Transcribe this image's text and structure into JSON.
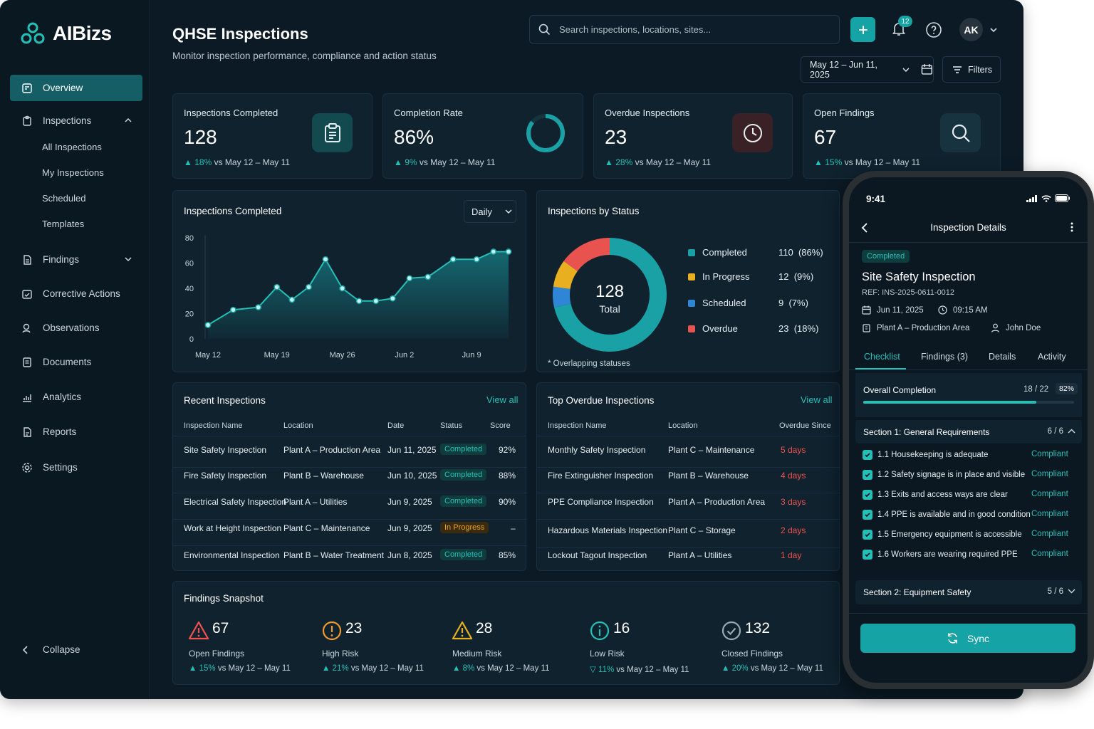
{
  "brand": {
    "name": "AIBizs"
  },
  "sidebar": {
    "items": [
      {
        "label": "Overview",
        "icon": "overview-icon"
      },
      {
        "label": "Inspections",
        "icon": "clipboard-icon"
      },
      {
        "label": "Findings",
        "icon": "document-icon"
      },
      {
        "label": "Corrective Actions",
        "icon": "actions-icon"
      },
      {
        "label": "Observations",
        "icon": "observation-icon"
      },
      {
        "label": "Documents",
        "icon": "files-icon"
      },
      {
        "label": "Analytics",
        "icon": "analytics-icon"
      },
      {
        "label": "Reports",
        "icon": "report-icon"
      },
      {
        "label": "Settings",
        "icon": "gear-icon"
      }
    ],
    "sub_items": [
      "All Inspections",
      "My Inspections",
      "Scheduled",
      "Templates"
    ],
    "collapse_label": "Collapse"
  },
  "header": {
    "title": "QHSE Inspections",
    "subtitle": "Monitor inspection performance, compliance and action status",
    "search_placeholder": "Search inspections, locations, sites...",
    "notifications_count": "12",
    "avatar_initials": "AK",
    "date_range": "May 12 – Jun 11, 2025",
    "filters_label": "Filters"
  },
  "kpis": [
    {
      "label": "Inspections Completed",
      "value": "128",
      "delta": "18%",
      "compare": "vs May 12 – May 11",
      "icon": "clipboard-icon"
    },
    {
      "label": "Completion Rate",
      "value": "86%",
      "delta": "9%",
      "compare": "vs May 12 – May 11",
      "icon": "progress-ring-icon",
      "fraction": 0.86
    },
    {
      "label": "Overdue Inspections",
      "value": "23",
      "delta": "28%",
      "compare": "vs May 12 – May 11",
      "icon": "clock-icon"
    },
    {
      "label": "Open Findings",
      "value": "67",
      "delta": "15%",
      "compare": "vs May 12 – May 11",
      "icon": "search-icon"
    }
  ],
  "line_chart": {
    "title": "Inspections Completed",
    "period": "Daily"
  },
  "chart_data": [
    {
      "type": "area",
      "title": "Inspections Completed",
      "x_ticks": [
        "May 12",
        "May 19",
        "May 26",
        "Jun 2",
        "Jun 9"
      ],
      "y_ticks": [
        0,
        20,
        40,
        60,
        80
      ],
      "ylim": [
        0,
        80
      ],
      "x": [
        0,
        1.5,
        3,
        4.1,
        5,
        6,
        7,
        8,
        9,
        10,
        11,
        12,
        13.1,
        14.6,
        16,
        17,
        17.9
      ],
      "values": [
        11,
        23,
        25,
        41,
        31,
        41,
        63,
        40,
        30,
        30,
        32,
        48,
        49,
        63,
        63,
        69,
        69
      ],
      "grid": false
    },
    {
      "type": "pie",
      "title": "Inspections by Status",
      "center_value": "128",
      "center_label": "Total",
      "slices": [
        {
          "label": "Completed",
          "value": 110,
          "pct": "86%",
          "color": "#1aa1a6"
        },
        {
          "label": "In Progress",
          "value": 12,
          "pct": "9%",
          "color": "#e8b021"
        },
        {
          "label": "Scheduled",
          "value": 9,
          "pct": "7%",
          "color": "#2f86d6"
        },
        {
          "label": "Overdue",
          "value": 23,
          "pct": "18%",
          "color": "#e85350"
        }
      ],
      "footnote": "* Overlapping statuses"
    }
  ],
  "recent": {
    "title": "Recent Inspections",
    "view_all": "View all",
    "columns": [
      "Inspection Name",
      "Location",
      "Date",
      "Status",
      "Score"
    ],
    "rows": [
      {
        "name": "Site Safety Inspection",
        "location": "Plant A – Production Area",
        "date": "Jun 11, 2025",
        "status": "Completed",
        "score": "92%"
      },
      {
        "name": "Fire Safety Inspection",
        "location": "Plant B – Warehouse",
        "date": "Jun 10, 2025",
        "status": "Completed",
        "score": "88%"
      },
      {
        "name": "Electrical Safety Inspection",
        "location": "Plant A – Utilities",
        "date": "Jun 9, 2025",
        "status": "Completed",
        "score": "90%"
      },
      {
        "name": "Work at Height Inspection",
        "location": "Plant C – Maintenance",
        "date": "Jun 9, 2025",
        "status": "In Progress",
        "score": "–"
      },
      {
        "name": "Environmental Inspection",
        "location": "Plant B – Water Treatment",
        "date": "Jun 8, 2025",
        "status": "Completed",
        "score": "85%"
      }
    ]
  },
  "overdue": {
    "title": "Top Overdue Inspections",
    "view_all": "View all",
    "columns": [
      "Inspection Name",
      "Location",
      "Overdue Since"
    ],
    "rows": [
      {
        "name": "Monthly Safety Inspection",
        "location": "Plant C – Maintenance",
        "since": "5 days"
      },
      {
        "name": "Fire Extinguisher Inspection",
        "location": "Plant B – Warehouse",
        "since": "4 days"
      },
      {
        "name": "PPE Compliance Inspection",
        "location": "Plant A – Production Area",
        "since": "3 days"
      },
      {
        "name": "Hazardous Materials Inspection",
        "location": "Plant C – Storage",
        "since": "2 days"
      },
      {
        "name": "Lockout Tagout Inspection",
        "location": "Plant A – Utilities",
        "since": "1 day"
      }
    ]
  },
  "findings": {
    "title": "Findings Snapshot",
    "items": [
      {
        "value": "67",
        "label": "Open Findings",
        "delta": "15%",
        "dir": "up",
        "compare": "vs May 12 – May 11",
        "icon": "warning-triangle-icon",
        "color": "#ef5350"
      },
      {
        "value": "23",
        "label": "High Risk",
        "delta": "21%",
        "dir": "up",
        "compare": "vs May 12 – May 11",
        "icon": "alert-circle-icon",
        "color": "#f2992e"
      },
      {
        "value": "28",
        "label": "Medium Risk",
        "delta": "8%",
        "dir": "up",
        "compare": "vs May 12 – May 11",
        "icon": "warning-triangle-icon",
        "color": "#e8b021"
      },
      {
        "value": "16",
        "label": "Low Risk",
        "delta": "11%",
        "dir": "down",
        "compare": "vs May 12 – May 11",
        "icon": "info-circle-icon",
        "color": "#22c0b7"
      },
      {
        "value": "132",
        "label": "Closed Findings",
        "delta": "20%",
        "dir": "up",
        "compare": "vs May 12 – May 11",
        "icon": "check-circle-icon",
        "color": "#9aa8b0"
      }
    ]
  },
  "phone": {
    "time": "9:41",
    "title": "Inspection Details",
    "badge": "Completed",
    "name": "Site Safety Inspection",
    "ref": "REF: INS-2025-0611-0012",
    "date": "Jun 11, 2025",
    "time_done": "09:15 AM",
    "location": "Plant A – Production Area",
    "inspector": "John Doe",
    "tabs": [
      "Checklist",
      "Findings (3)",
      "Details",
      "Activity"
    ],
    "overall_label": "Overall Completion",
    "overall_count": "18 / 22",
    "overall_pct": "82%",
    "overall_fraction": 0.82,
    "section1": {
      "label": "Section 1: General Requirements",
      "count": "6 / 6"
    },
    "checks": [
      {
        "label": "1.1 Housekeeping is adequate",
        "status": "Compliant"
      },
      {
        "label": "1.2 Safety signage is in place and visible",
        "status": "Compliant"
      },
      {
        "label": "1.3 Exits and access ways are clear",
        "status": "Compliant"
      },
      {
        "label": "1.4 PPE is available and in good condition",
        "status": "Compliant"
      },
      {
        "label": "1.5 Emergency equipment is accessible",
        "status": "Compliant"
      },
      {
        "label": "1.6 Workers are wearing required PPE",
        "status": "Compliant"
      }
    ],
    "section2": {
      "label": "Section 2: Equipment Safety",
      "count": "5 / 6"
    },
    "sync_label": "Sync"
  }
}
